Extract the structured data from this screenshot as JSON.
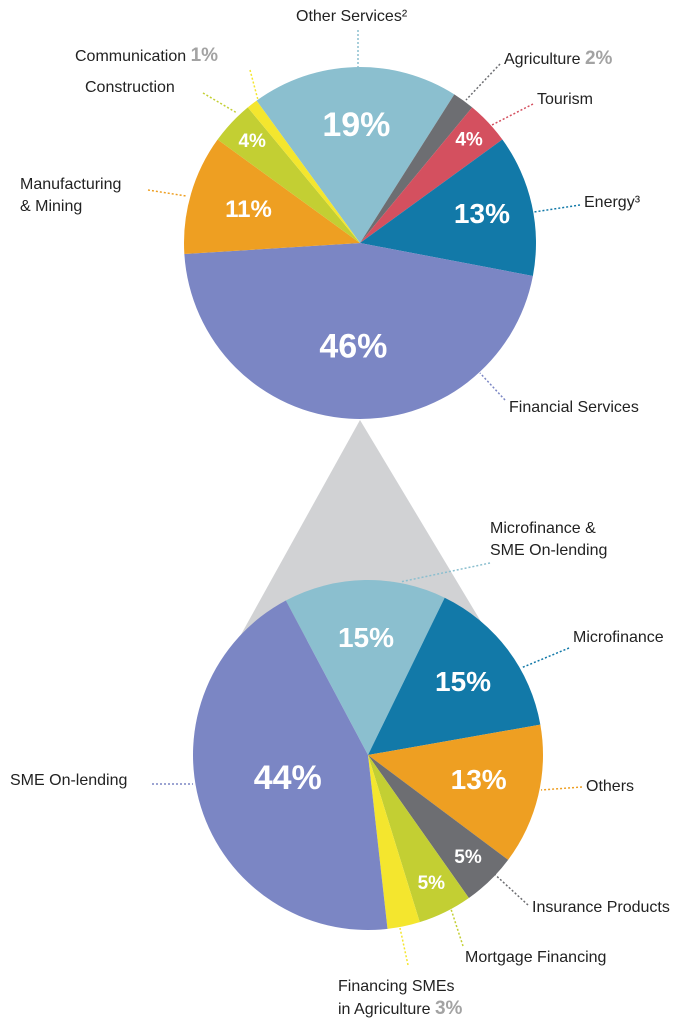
{
  "chart_data": [
    {
      "type": "pie",
      "categories": [
        "Other Services²",
        "Agriculture",
        "Tourism",
        "Energy³",
        "Financial Services",
        "Manufacturing\n& Mining",
        "Construction",
        "Communication"
      ],
      "values": [
        19,
        2,
        4,
        13,
        46,
        11,
        4,
        1
      ],
      "value_labels": [
        "19%",
        "2%",
        "4%",
        "13%",
        "46%",
        "11%",
        "4%",
        "1%"
      ],
      "colors": [
        "#8bbfcf",
        "#6d6e72",
        "#d4505f",
        "#1279a8",
        "#7b86c4",
        "#ee9f22",
        "#c3cf33",
        "#f4e62e"
      ]
    },
    {
      "type": "pie",
      "categories": [
        "Microfinance &\nSME On-lending",
        "Microfinance",
        "Others",
        "Insurance Products",
        "Mortgage Financing",
        "Financing SMEs\nin Agriculture",
        "SME On-lending"
      ],
      "values": [
        15,
        15,
        13,
        5,
        5,
        3,
        44
      ],
      "value_labels": [
        "15%",
        "15%",
        "13%",
        "5%",
        "5%",
        "3%",
        "44%"
      ],
      "colors": [
        "#8bbfcf",
        "#1279a8",
        "#ee9f22",
        "#6d6e72",
        "#c3cf33",
        "#f4e62e",
        "#7b86c4"
      ]
    }
  ]
}
